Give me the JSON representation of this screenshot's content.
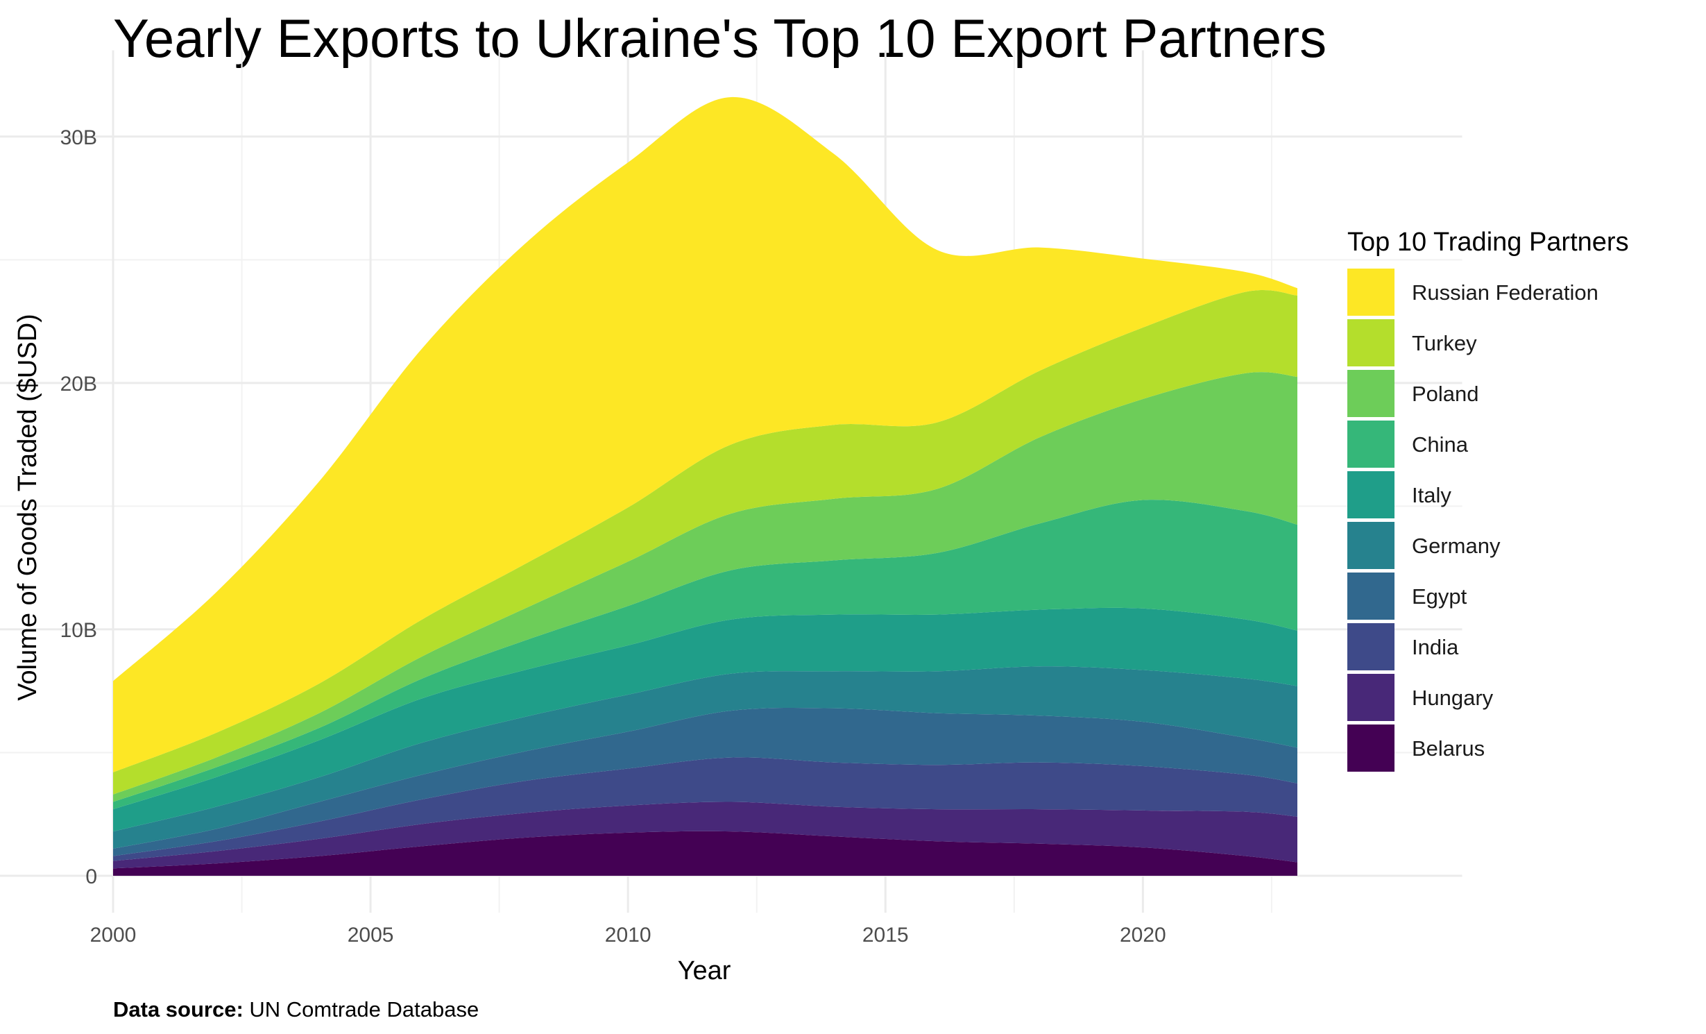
{
  "chart_data": {
    "type": "area",
    "subtype": "stacked-streamgraph",
    "title": "Yearly Exports to Ukraine's Top 10 Export Partners",
    "xlabel": "Year",
    "ylabel": "Volume of Goods Traded ($USD)",
    "xlim": [
      2000,
      2023
    ],
    "ylim": [
      0,
      31600000000
    ],
    "x_ticks": [
      2000,
      2005,
      2010,
      2015,
      2020
    ],
    "x_tick_labels": [
      "2000",
      "2005",
      "2010",
      "2015",
      "2020"
    ],
    "y_ticks": [
      0,
      10000000000,
      20000000000,
      30000000000
    ],
    "y_tick_labels": [
      "0",
      "10B",
      "20B",
      "30B"
    ],
    "grid": true,
    "legend_title": "Top 10 Trading Partners",
    "legend_position": "right",
    "x": [
      2000,
      2002,
      2004,
      2006,
      2008,
      2010,
      2012,
      2014,
      2016,
      2018,
      2020,
      2022,
      2023
    ],
    "series": [
      {
        "name": "Belarus",
        "color": "#440154",
        "values": [
          0.3,
          0.5,
          0.8,
          1.2,
          1.55,
          1.75,
          1.8,
          1.6,
          1.4,
          1.3,
          1.15,
          0.8,
          0.55
        ]
      },
      {
        "name": "Hungary",
        "color": "#482878",
        "values": [
          0.3,
          0.5,
          0.7,
          0.9,
          1.0,
          1.1,
          1.2,
          1.2,
          1.3,
          1.4,
          1.5,
          1.8,
          1.85
        ]
      },
      {
        "name": "India",
        "color": "#3E4A89",
        "values": [
          0.2,
          0.4,
          0.7,
          1.0,
          1.3,
          1.5,
          1.8,
          1.8,
          1.8,
          1.9,
          1.8,
          1.5,
          1.35
        ]
      },
      {
        "name": "Egypt",
        "color": "#31688E",
        "values": [
          0.3,
          0.5,
          0.8,
          1.0,
          1.2,
          1.5,
          1.9,
          2.2,
          2.1,
          1.9,
          1.8,
          1.5,
          1.45
        ]
      },
      {
        "name": "Germany",
        "color": "#26828E",
        "values": [
          0.7,
          0.9,
          1.0,
          1.3,
          1.4,
          1.5,
          1.5,
          1.5,
          1.7,
          2.0,
          2.1,
          2.4,
          2.5
        ]
      },
      {
        "name": "Italy",
        "color": "#1F9E89",
        "values": [
          0.9,
          1.2,
          1.5,
          1.8,
          1.9,
          2.0,
          2.2,
          2.3,
          2.3,
          2.3,
          2.5,
          2.4,
          2.25
        ]
      },
      {
        "name": "China",
        "color": "#35B779",
        "values": [
          0.3,
          0.4,
          0.5,
          0.8,
          1.2,
          1.6,
          2.0,
          2.2,
          2.5,
          3.5,
          4.4,
          4.4,
          4.3
        ]
      },
      {
        "name": "Poland",
        "color": "#6DCD59",
        "values": [
          0.3,
          0.4,
          0.6,
          0.9,
          1.3,
          1.8,
          2.3,
          2.5,
          2.6,
          3.5,
          4.1,
          5.6,
          6.0
        ]
      },
      {
        "name": "Turkey",
        "color": "#B4DE2C",
        "values": [
          0.9,
          1.0,
          1.2,
          1.5,
          1.8,
          2.2,
          2.8,
          3.0,
          2.7,
          2.7,
          2.9,
          3.3,
          3.3
        ]
      },
      {
        "name": "Russian Federation",
        "color": "#FDE725",
        "values": [
          3.7,
          5.7,
          8.2,
          11.0,
          13.0,
          14.0,
          14.1,
          11.0,
          7.0,
          5.0,
          2.8,
          0.8,
          0.3
        ]
      }
    ],
    "values_unit": "billions USD"
  },
  "legend_order": [
    "Russian Federation",
    "Turkey",
    "Poland",
    "China",
    "Italy",
    "Germany",
    "Egypt",
    "India",
    "Hungary",
    "Belarus"
  ],
  "source": {
    "label": "Data source:",
    "text": " UN Comtrade Database"
  }
}
